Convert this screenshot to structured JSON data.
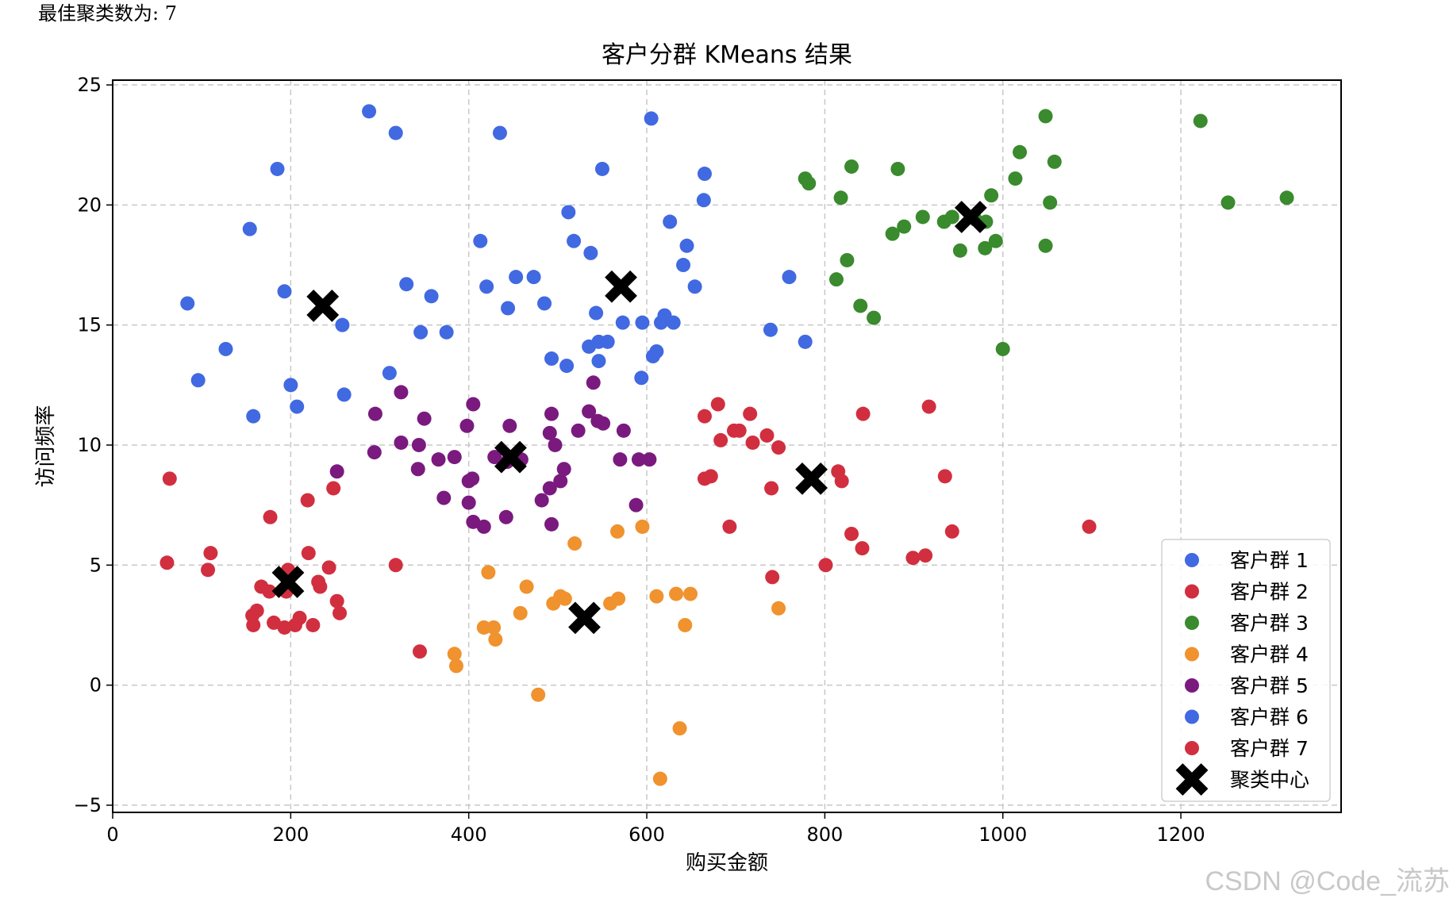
{
  "output_text": "最佳聚类数为: 7",
  "watermark": "CSDN @Code_流苏",
  "chart_data": {
    "type": "scatter",
    "title": "客户分群 KMeans 结果",
    "xlabel": "购买金额",
    "ylabel": "访问频率",
    "xlim": [
      0,
      1380
    ],
    "ylim": [
      -5.3,
      25.2
    ],
    "xticks": [
      0,
      200,
      400,
      600,
      800,
      1000,
      1200
    ],
    "yticks": [
      -5,
      0,
      5,
      10,
      15,
      20,
      25
    ],
    "grid": true,
    "grid_style": "dashed",
    "legend_position": "lower-right",
    "series": [
      {
        "name": "客户群 1",
        "color": "#4169e1",
        "points": [
          [
            288,
            23.9
          ],
          [
            318,
            23
          ],
          [
            435,
            23
          ],
          [
            185,
            21.5
          ],
          [
            550,
            21.5
          ],
          [
            605,
            23.6
          ],
          [
            665,
            21.3
          ],
          [
            154,
            19
          ],
          [
            512,
            19.7
          ],
          [
            518,
            18.5
          ],
          [
            537,
            18
          ],
          [
            413,
            18.5
          ],
          [
            626,
            19.3
          ],
          [
            645,
            18.3
          ],
          [
            664,
            20.2
          ],
          [
            641,
            17.5
          ],
          [
            654,
            16.6
          ],
          [
            453,
            17
          ],
          [
            473,
            17
          ],
          [
            420,
            16.6
          ],
          [
            485,
            15.9
          ],
          [
            444,
            15.7
          ],
          [
            330,
            16.7
          ],
          [
            358,
            16.2
          ],
          [
            193,
            16.4
          ],
          [
            84,
            15.9
          ],
          [
            258,
            15
          ],
          [
            127,
            14
          ],
          [
            96,
            12.7
          ],
          [
            200,
            12.5
          ],
          [
            207,
            11.6
          ],
          [
            158,
            11.2
          ],
          [
            260,
            12.1
          ],
          [
            311,
            13
          ],
          [
            346,
            14.7
          ],
          [
            375,
            14.7
          ],
          [
            493,
            13.6
          ],
          [
            510,
            13.3
          ],
          [
            535,
            14.1
          ],
          [
            546,
            14.3
          ],
          [
            556,
            14.3
          ],
          [
            546,
            13.5
          ],
          [
            543,
            15.5
          ],
          [
            573,
            15.1
          ],
          [
            595,
            15.1
          ],
          [
            620,
            15.4
          ],
          [
            616,
            15.1
          ],
          [
            630,
            15.1
          ],
          [
            611,
            13.9
          ],
          [
            607,
            13.7
          ],
          [
            594,
            12.8
          ],
          [
            739,
            14.8
          ],
          [
            778,
            14.3
          ],
          [
            760,
            17
          ]
        ]
      },
      {
        "name": "客户群 2",
        "color": "#d12f3f",
        "points": [
          [
            680,
            11.7
          ],
          [
            665,
            11.2
          ],
          [
            716,
            11.3
          ],
          [
            843,
            11.3
          ],
          [
            917,
            11.6
          ],
          [
            683,
            10.2
          ],
          [
            698,
            10.6
          ],
          [
            704,
            10.6
          ],
          [
            719,
            10.1
          ],
          [
            735,
            10.4
          ],
          [
            748,
            9.9
          ],
          [
            815,
            8.9
          ],
          [
            819,
            8.5
          ],
          [
            665,
            8.6
          ],
          [
            672,
            8.7
          ],
          [
            740,
            8.2
          ],
          [
            935,
            8.7
          ],
          [
            693,
            6.6
          ],
          [
            830,
            6.3
          ],
          [
            943,
            6.4
          ],
          [
            1097,
            6.6
          ],
          [
            842,
            5.7
          ],
          [
            899,
            5.3
          ],
          [
            913,
            5.4
          ],
          [
            801,
            5
          ],
          [
            741,
            4.5
          ]
        ]
      },
      {
        "name": "客户群 3",
        "color": "#3a8a2e",
        "points": [
          [
            1048,
            23.7
          ],
          [
            1222,
            23.5
          ],
          [
            1019,
            22.2
          ],
          [
            1058,
            21.8
          ],
          [
            830,
            21.6
          ],
          [
            882,
            21.5
          ],
          [
            778,
            21.1
          ],
          [
            782,
            20.9
          ],
          [
            1014,
            21.1
          ],
          [
            1253,
            20.1
          ],
          [
            1319,
            20.3
          ],
          [
            1053,
            20.1
          ],
          [
            987,
            20.4
          ],
          [
            818,
            20.3
          ],
          [
            969,
            19.4
          ],
          [
            981,
            19.3
          ],
          [
            910,
            19.5
          ],
          [
            934,
            19.3
          ],
          [
            943,
            19.5
          ],
          [
            889,
            19.1
          ],
          [
            876,
            18.8
          ],
          [
            992,
            18.5
          ],
          [
            980,
            18.2
          ],
          [
            952,
            18.1
          ],
          [
            1048,
            18.3
          ],
          [
            825,
            17.7
          ],
          [
            813,
            16.9
          ],
          [
            840,
            15.8
          ],
          [
            855,
            15.3
          ],
          [
            1000,
            14
          ]
        ]
      },
      {
        "name": "客户群 4",
        "color": "#f0922e",
        "points": [
          [
            519,
            5.9
          ],
          [
            567,
            6.4
          ],
          [
            595,
            6.6
          ],
          [
            422,
            4.7
          ],
          [
            465,
            4.1
          ],
          [
            503,
            3.7
          ],
          [
            495,
            3.4
          ],
          [
            508,
            3.6
          ],
          [
            559,
            3.4
          ],
          [
            568,
            3.6
          ],
          [
            611,
            3.7
          ],
          [
            633,
            3.8
          ],
          [
            649,
            3.8
          ],
          [
            748,
            3.2
          ],
          [
            458,
            3
          ],
          [
            417,
            2.4
          ],
          [
            428,
            2.4
          ],
          [
            430,
            1.9
          ],
          [
            643,
            2.5
          ],
          [
            384,
            1.3
          ],
          [
            386,
            0.8
          ],
          [
            478,
            -0.4
          ],
          [
            637,
            -1.8
          ],
          [
            615,
            -3.9
          ]
        ]
      },
      {
        "name": "客户群 5",
        "color": "#7a1a7f",
        "points": [
          [
            540,
            12.6
          ],
          [
            324,
            12.2
          ],
          [
            405,
            11.7
          ],
          [
            295,
            11.3
          ],
          [
            350,
            11.1
          ],
          [
            398,
            10.8
          ],
          [
            446,
            10.8
          ],
          [
            535,
            11.4
          ],
          [
            545,
            11
          ],
          [
            551,
            10.9
          ],
          [
            493,
            11.3
          ],
          [
            491,
            10.5
          ],
          [
            523,
            10.6
          ],
          [
            574,
            10.6
          ],
          [
            324,
            10.1
          ],
          [
            344,
            10
          ],
          [
            294,
            9.7
          ],
          [
            366,
            9.4
          ],
          [
            384,
            9.5
          ],
          [
            429,
            9.5
          ],
          [
            497,
            10
          ],
          [
            443,
            9.3
          ],
          [
            459,
            9.4
          ],
          [
            570,
            9.4
          ],
          [
            591,
            9.4
          ],
          [
            603,
            9.4
          ],
          [
            343,
            9
          ],
          [
            507,
            9
          ],
          [
            252,
            8.9
          ],
          [
            372,
            7.8
          ],
          [
            404,
            8.6
          ],
          [
            400,
            8.5
          ],
          [
            491,
            8.2
          ],
          [
            503,
            8.5
          ],
          [
            482,
            7.7
          ],
          [
            400,
            7.6
          ],
          [
            588,
            7.5
          ],
          [
            405,
            6.8
          ],
          [
            417,
            6.6
          ],
          [
            442,
            7
          ],
          [
            493,
            6.7
          ]
        ]
      },
      {
        "name": "客户群 6",
        "color": "#4169e1",
        "points": []
      },
      {
        "name": "客户群 7",
        "color": "#d12f3f",
        "points": [
          [
            64,
            8.6
          ],
          [
            177,
            7
          ],
          [
            219,
            7.7
          ],
          [
            248,
            8.2
          ],
          [
            61,
            5.1
          ],
          [
            110,
            5.5
          ],
          [
            107,
            4.8
          ],
          [
            220,
            5.5
          ],
          [
            243,
            4.9
          ],
          [
            318,
            5
          ],
          [
            197,
            4.8
          ],
          [
            167,
            4.1
          ],
          [
            176,
            3.9
          ],
          [
            195,
            3.9
          ],
          [
            231,
            4.3
          ],
          [
            233,
            4.1
          ],
          [
            252,
            3.5
          ],
          [
            255,
            3
          ],
          [
            162,
            3.1
          ],
          [
            157,
            2.9
          ],
          [
            158,
            2.5
          ],
          [
            181,
            2.6
          ],
          [
            193,
            2.4
          ],
          [
            205,
            2.5
          ],
          [
            210,
            2.8
          ],
          [
            225,
            2.5
          ],
          [
            345,
            1.4
          ]
        ]
      },
      {
        "name": "聚类中心",
        "color": "#000000",
        "marker": "X",
        "points": [
          [
            236,
            15.8
          ],
          [
            571,
            16.6
          ],
          [
            447,
            9.5
          ],
          [
            964,
            19.5
          ],
          [
            785,
            8.6
          ],
          [
            197,
            4.3
          ],
          [
            530,
            2.8
          ]
        ]
      }
    ]
  }
}
